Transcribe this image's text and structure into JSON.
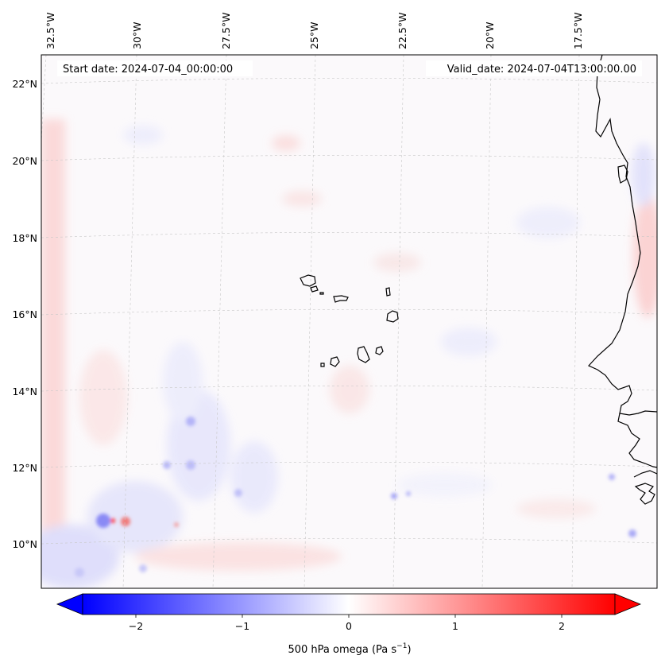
{
  "header": {
    "start_date": "Start date: 2024-07-04_00:00:00",
    "valid_date": "Valid_date: 2024-07-04T13:00:00.00"
  },
  "map": {
    "lon_labels": [
      "32.5°W",
      "30°W",
      "27.5°W",
      "25°W",
      "22.5°W",
      "20°W",
      "17.5°W"
    ],
    "lat_labels": [
      "22°N",
      "20°N",
      "18°N",
      "16°N",
      "14°N",
      "12°N",
      "10°N"
    ],
    "field": "500 hPa omega",
    "region": "Cabo Verde and West African coast"
  },
  "colorbar": {
    "ticks": [
      "−2",
      "−1",
      "0",
      "1",
      "2"
    ],
    "tick_values": [
      -2,
      -1,
      0,
      1,
      2
    ],
    "range": [
      -2.5,
      2.5
    ],
    "label_main": "500 hPa omega (Pa s",
    "label_exp": "−1",
    "label_close": ")",
    "colors": {
      "negative": "#0000ff",
      "zero": "#ffffff",
      "positive": "#ff0000"
    }
  }
}
